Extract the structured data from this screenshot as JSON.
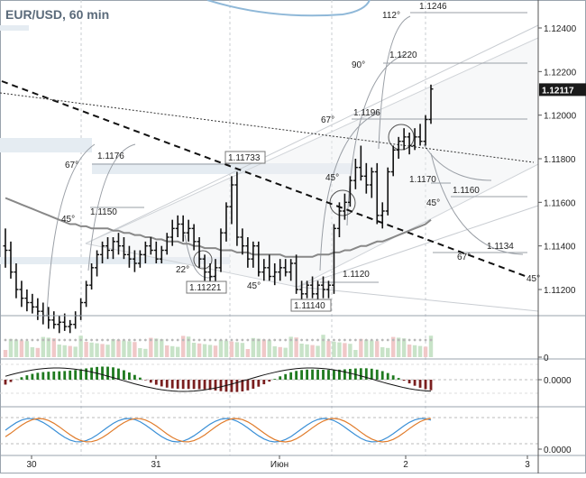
{
  "title": "EUR/USD, 60 min",
  "chart_data": {
    "type": "line",
    "instrument": "EUR/USD",
    "timeframe": "60 min",
    "price_axis": {
      "ylim": [
        1.1108,
        1.1252
      ],
      "ticks": [
        "1.12400",
        "1.12200",
        "1.12000",
        "1.11800",
        "1.11600",
        "1.11400",
        "1.11200"
      ],
      "current_price": "1.12117"
    },
    "time_axis": {
      "labels": [
        "30",
        "31",
        "Июн",
        "2",
        "3"
      ]
    },
    "candles": [
      [
        1.114,
        1.1148,
        1.113,
        1.1138
      ],
      [
        1.1138,
        1.1142,
        1.1125,
        1.1128
      ],
      [
        1.1128,
        1.1132,
        1.1116,
        1.112
      ],
      [
        1.112,
        1.1124,
        1.1112,
        1.1116
      ],
      [
        1.1116,
        1.112,
        1.111,
        1.1114
      ],
      [
        1.1114,
        1.1118,
        1.1109,
        1.1112
      ],
      [
        1.1112,
        1.1116,
        1.1106,
        1.111
      ],
      [
        1.111,
        1.1114,
        1.1104,
        1.1108
      ],
      [
        1.1108,
        1.1112,
        1.1102,
        1.1106
      ],
      [
        1.1106,
        1.111,
        1.1102,
        1.1104
      ],
      [
        1.1104,
        1.1108,
        1.11,
        1.1105
      ],
      [
        1.1105,
        1.1109,
        1.1101,
        1.1103
      ],
      [
        1.1103,
        1.1106,
        1.11,
        1.1104
      ],
      [
        1.1104,
        1.111,
        1.1102,
        1.1108
      ],
      [
        1.1108,
        1.1116,
        1.1106,
        1.1114
      ],
      [
        1.1114,
        1.1124,
        1.1112,
        1.1122
      ],
      [
        1.1122,
        1.1132,
        1.112,
        1.113
      ],
      [
        1.113,
        1.1138,
        1.1126,
        1.1136
      ],
      [
        1.1136,
        1.1142,
        1.1132,
        1.114
      ],
      [
        1.114,
        1.1144,
        1.1134,
        1.1138
      ],
      [
        1.1138,
        1.1144,
        1.1134,
        1.1142
      ],
      [
        1.1142,
        1.1146,
        1.1136,
        1.114
      ],
      [
        1.114,
        1.1144,
        1.1134,
        1.1136
      ],
      [
        1.1136,
        1.114,
        1.113,
        1.1134
      ],
      [
        1.1134,
        1.1138,
        1.1128,
        1.1132
      ],
      [
        1.1132,
        1.1138,
        1.113,
        1.1136
      ],
      [
        1.1136,
        1.1142,
        1.1132,
        1.114
      ],
      [
        1.114,
        1.1144,
        1.1136,
        1.1138
      ],
      [
        1.1138,
        1.1142,
        1.1132,
        1.1134
      ],
      [
        1.1134,
        1.114,
        1.1132,
        1.1138
      ],
      [
        1.1138,
        1.1146,
        1.1136,
        1.1144
      ],
      [
        1.1144,
        1.1152,
        1.114,
        1.1148
      ],
      [
        1.1148,
        1.1154,
        1.1144,
        1.115
      ],
      [
        1.115,
        1.1154,
        1.1142,
        1.1146
      ],
      [
        1.1146,
        1.1152,
        1.1142,
        1.1148
      ],
      [
        1.1148,
        1.115,
        1.1138,
        1.1142
      ],
      [
        1.1142,
        1.1144,
        1.113,
        1.1134
      ],
      [
        1.1134,
        1.1136,
        1.1124,
        1.1128
      ],
      [
        1.1128,
        1.1132,
        1.1122,
        1.1126
      ],
      [
        1.1126,
        1.1134,
        1.1122,
        1.113
      ],
      [
        1.113,
        1.1148,
        1.1128,
        1.1146
      ],
      [
        1.1146,
        1.116,
        1.1142,
        1.1158
      ],
      [
        1.1158,
        1.1172,
        1.115,
        1.1168
      ],
      [
        1.1168,
        1.1174,
        1.114,
        1.1144
      ],
      [
        1.1144,
        1.1148,
        1.1136,
        1.114
      ],
      [
        1.114,
        1.1144,
        1.113,
        1.1134
      ],
      [
        1.1134,
        1.1142,
        1.113,
        1.114
      ],
      [
        1.114,
        1.1142,
        1.1126,
        1.1128
      ],
      [
        1.1128,
        1.1134,
        1.1124,
        1.113
      ],
      [
        1.113,
        1.1136,
        1.1124,
        1.1126
      ],
      [
        1.1126,
        1.1132,
        1.1122,
        1.1128
      ],
      [
        1.1128,
        1.1134,
        1.1124,
        1.113
      ],
      [
        1.113,
        1.1134,
        1.1126,
        1.1128
      ],
      [
        1.1128,
        1.1134,
        1.1124,
        1.1132
      ],
      [
        1.1132,
        1.1136,
        1.1118,
        1.112
      ],
      [
        1.112,
        1.1124,
        1.1114,
        1.1118
      ],
      [
        1.1118,
        1.1124,
        1.1116,
        1.1122
      ],
      [
        1.1122,
        1.1126,
        1.1116,
        1.1118
      ],
      [
        1.1118,
        1.1124,
        1.1114,
        1.1122
      ],
      [
        1.1122,
        1.1126,
        1.1116,
        1.112
      ],
      [
        1.112,
        1.1124,
        1.1116,
        1.1122
      ],
      [
        1.1122,
        1.115,
        1.1118,
        1.1148
      ],
      [
        1.1148,
        1.116,
        1.1144,
        1.1156
      ],
      [
        1.1156,
        1.1164,
        1.1152,
        1.116
      ],
      [
        1.116,
        1.1172,
        1.1158,
        1.117
      ],
      [
        1.117,
        1.118,
        1.1166,
        1.1176
      ],
      [
        1.1176,
        1.1186,
        1.117,
        1.1172
      ],
      [
        1.1172,
        1.1178,
        1.1164,
        1.1168
      ],
      [
        1.1168,
        1.1176,
        1.1162,
        1.1174
      ],
      [
        1.1174,
        1.1178,
        1.115,
        1.1154
      ],
      [
        1.1154,
        1.116,
        1.1148,
        1.1156
      ],
      [
        1.1156,
        1.1176,
        1.1154,
        1.1174
      ],
      [
        1.1174,
        1.1186,
        1.1172,
        1.1184
      ],
      [
        1.1184,
        1.119,
        1.118,
        1.1188
      ],
      [
        1.1188,
        1.1194,
        1.1184,
        1.119
      ],
      [
        1.119,
        1.1192,
        1.1182,
        1.1186
      ],
      [
        1.1186,
        1.1194,
        1.1184,
        1.119
      ],
      [
        1.119,
        1.1196,
        1.1186,
        1.1188
      ],
      [
        1.1188,
        1.12,
        1.1186,
        1.1198
      ],
      [
        1.1198,
        1.1214,
        1.1196,
        1.1212
      ]
    ],
    "moving_average": [
      1.1162,
      1.1161,
      1.116,
      1.1159,
      1.1158,
      1.1157,
      1.1156,
      1.1155,
      1.1154,
      1.1153,
      1.1152,
      1.1151,
      1.115,
      1.115,
      1.1149,
      1.1149,
      1.1148,
      1.1148,
      1.1148,
      1.1148,
      1.1147,
      1.1147,
      1.1146,
      1.1146,
      1.1145,
      1.1145,
      1.1144,
      1.1144,
      1.1143,
      1.1143,
      1.1142,
      1.1142,
      1.1142,
      1.1141,
      1.1141,
      1.114,
      1.114,
      1.1139,
      1.1139,
      1.1139,
      1.1138,
      1.1138,
      1.1138,
      1.1137,
      1.1137,
      1.1137,
      1.1136,
      1.1136,
      1.1136,
      1.1136,
      1.1136,
      1.1136,
      1.1135,
      1.1135,
      1.1135,
      1.1135,
      1.1135,
      1.1135,
      1.1136,
      1.1136,
      1.1136,
      1.1137,
      1.1137,
      1.1138,
      1.1138,
      1.1139,
      1.114,
      1.114,
      1.1141,
      1.1142,
      1.1142,
      1.1143,
      1.1144,
      1.1145,
      1.1146,
      1.1147,
      1.1148,
      1.1149,
      1.115,
      1.1152
    ],
    "price_annotations": [
      "1.1246",
      "1.1220",
      "1.1196",
      "1.1176",
      "1.1170",
      "1.1160",
      "1.1150",
      "1.1134",
      "1.1120"
    ],
    "boxed_annotations": [
      "1.11733",
      "1.11221",
      "1.11140"
    ],
    "angle_annotations": [
      "112°",
      "90°",
      "67°",
      "67°",
      "45°",
      "45°",
      "45°",
      "45°",
      "22°",
      "67°",
      "45°"
    ],
    "panels": [
      {
        "name": "volume",
        "axis_labels": [
          "0"
        ]
      },
      {
        "name": "oscillator-histogram",
        "axis_labels": [
          "0.0000"
        ]
      },
      {
        "name": "stochastic",
        "axis_labels": [
          "0.0000"
        ]
      }
    ]
  }
}
